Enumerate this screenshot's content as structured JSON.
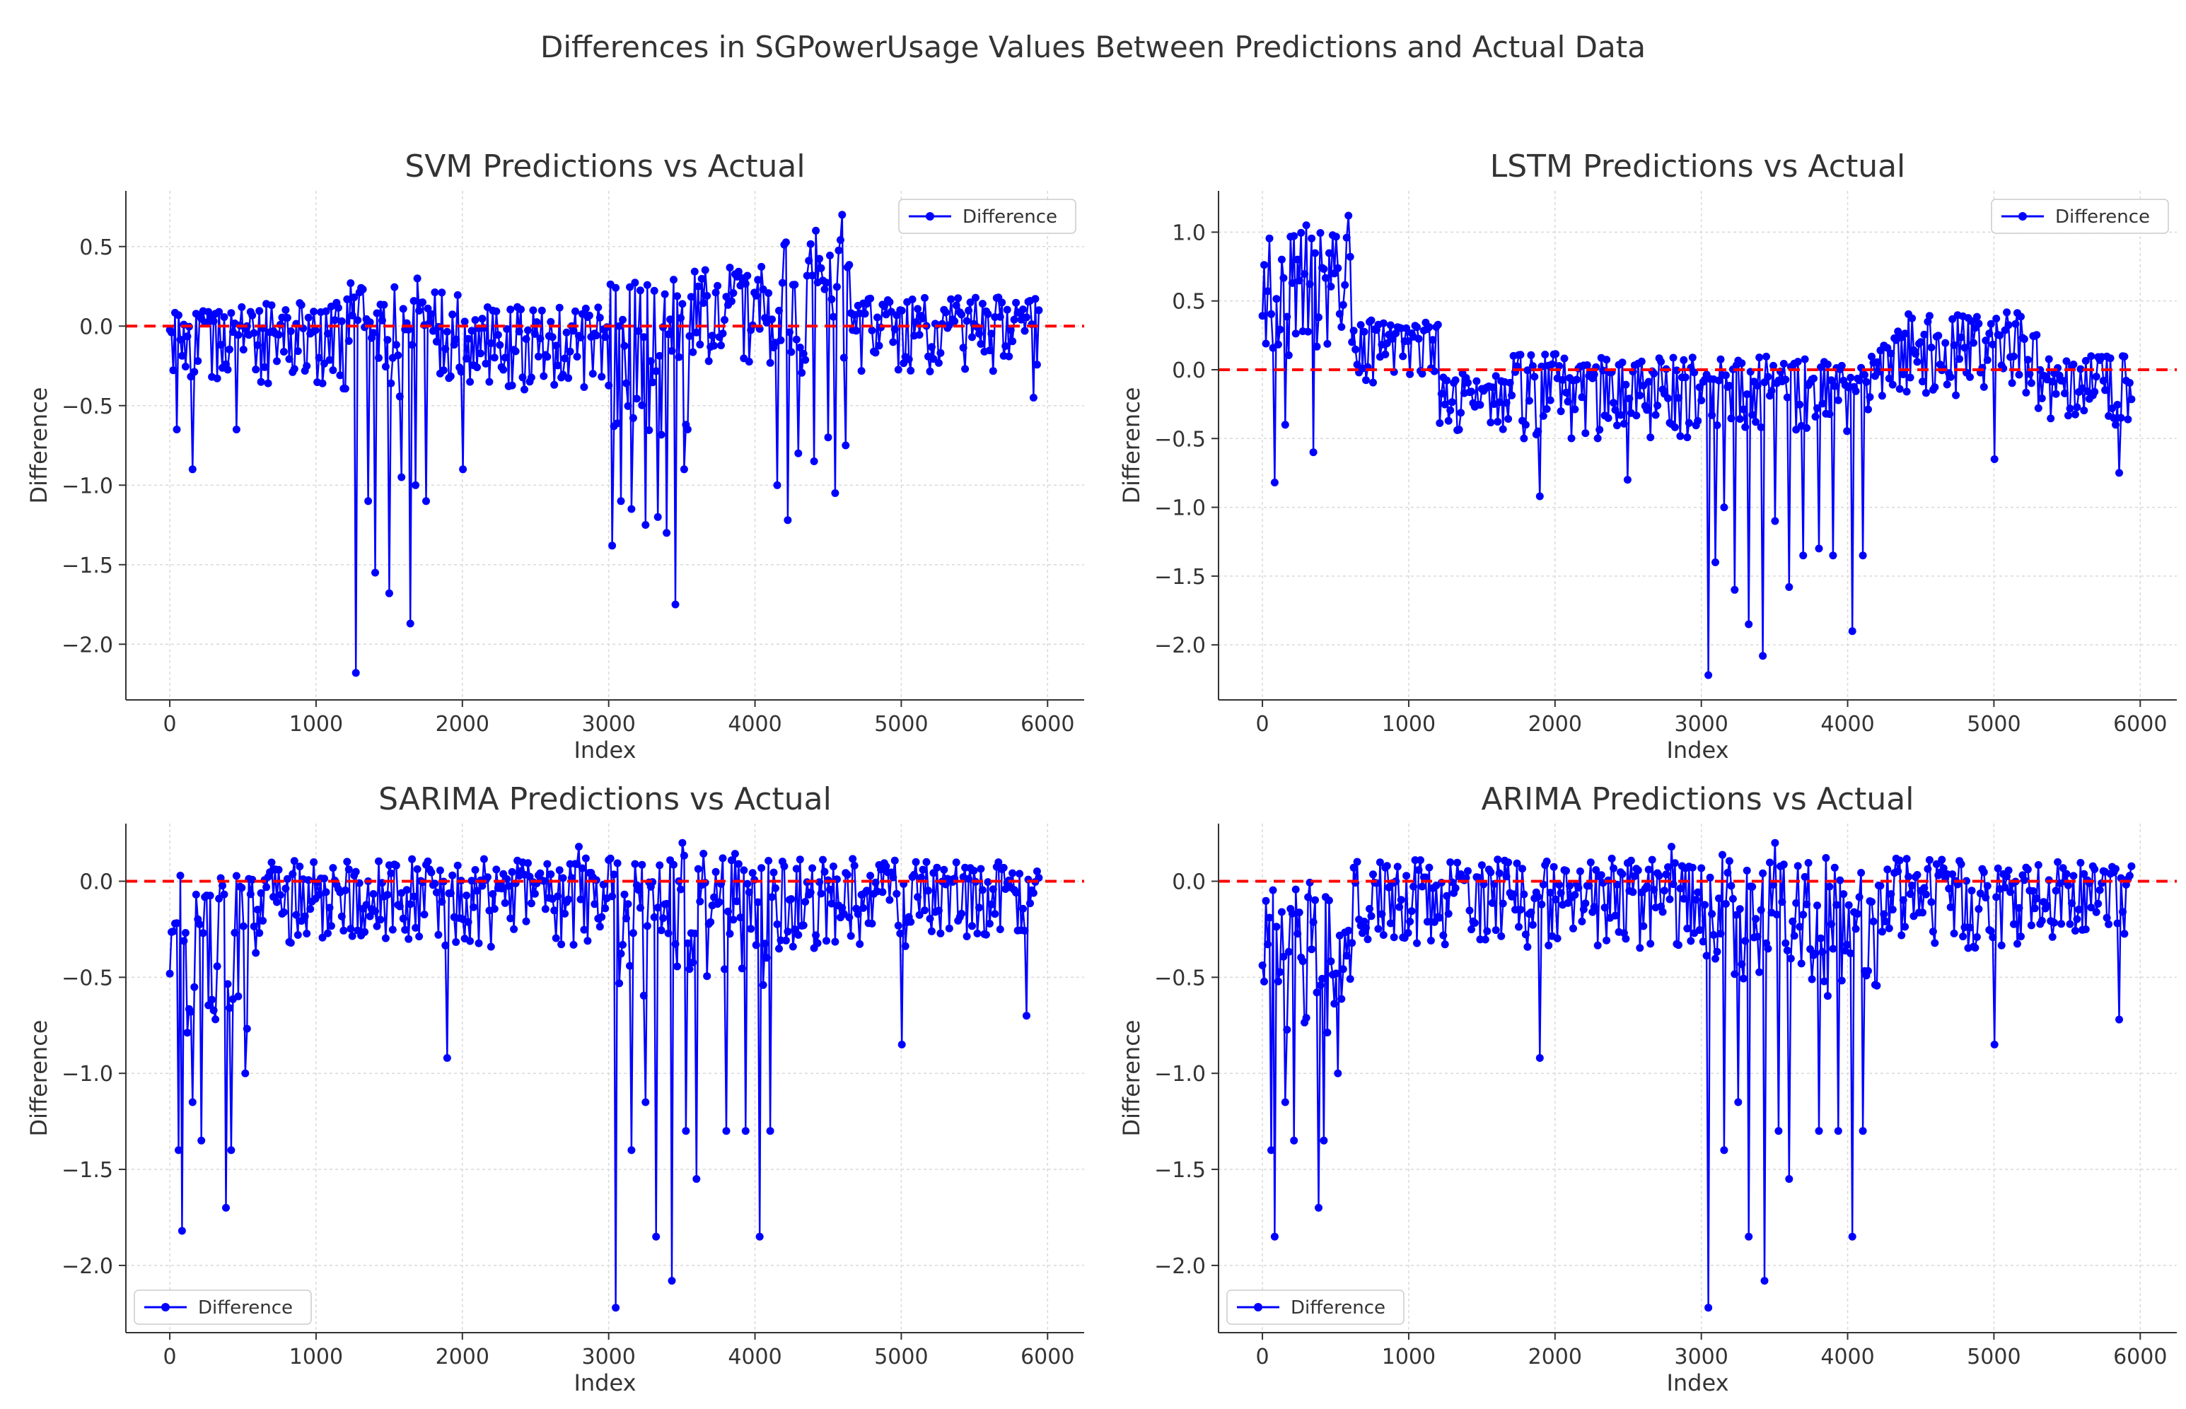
{
  "figure": {
    "title": "Differences in SGPowerUsage Values Between Predictions and Actual Data"
  },
  "colors": {
    "series": "#0000ff",
    "reference_line": "#ff0000",
    "grid": "#d9d9d9",
    "axis": "#333333",
    "text": "#333333"
  },
  "chart_data": [
    {
      "type": "line",
      "title": "SVM Predictions vs Actual",
      "xlabel": "Index",
      "ylabel": "Difference",
      "xlim": [
        -300,
        6250
      ],
      "ylim": [
        -2.35,
        0.85
      ],
      "xticks": [
        0,
        1000,
        2000,
        3000,
        4000,
        5000,
        6000
      ],
      "xtick_labels": [
        "0",
        "1000",
        "2000",
        "3000",
        "4000",
        "5000",
        "6000"
      ],
      "yticks": [
        0.5,
        0.0,
        -0.5,
        -1.0,
        -1.5,
        -2.0
      ],
      "ytick_labels": [
        "0.5",
        "0.0",
        "−0.5",
        "−1.0",
        "−1.5",
        "−2.0"
      ],
      "reference_line": {
        "y": 0.0,
        "style": "dashed"
      },
      "legend": {
        "label": "Difference",
        "position": "upper right"
      },
      "n_points": 5950,
      "series": [
        {
          "name": "Difference",
          "segments": [
            {
              "x": [
                0,
                600
              ],
              "low": -0.35,
              "high": 0.12
            },
            {
              "x": [
                600,
                1200
              ],
              "low": -0.4,
              "high": 0.15
            },
            {
              "x": [
                1200,
                2000
              ],
              "low": -0.45,
              "high": 0.25
            },
            {
              "x": [
                2000,
                3000
              ],
              "low": -0.4,
              "high": 0.12
            },
            {
              "x": [
                3000,
                3550
              ],
              "low": -0.7,
              "high": 0.3
            },
            {
              "x": [
                3550,
                4150
              ],
              "low": -0.25,
              "high": 0.4
            },
            {
              "x": [
                4150,
                4650
              ],
              "low": -0.3,
              "high": 0.55
            },
            {
              "x": [
                4650,
                5950
              ],
              "low": -0.3,
              "high": 0.18
            }
          ],
          "spikes": [
            {
              "x": 50,
              "y": -0.65
            },
            {
              "x": 150,
              "y": -0.9
            },
            {
              "x": 450,
              "y": -0.65
            },
            {
              "x": 1240,
              "y": -1.0
            },
            {
              "x": 1270,
              "y": -2.18
            },
            {
              "x": 1350,
              "y": -1.1
            },
            {
              "x": 1400,
              "y": -1.55
            },
            {
              "x": 1500,
              "y": -1.68
            },
            {
              "x": 1580,
              "y": -0.95
            },
            {
              "x": 1640,
              "y": -1.87
            },
            {
              "x": 1680,
              "y": -1.0
            },
            {
              "x": 1750,
              "y": -1.1
            },
            {
              "x": 2000,
              "y": -0.9
            },
            {
              "x": 3020,
              "y": -1.38
            },
            {
              "x": 3080,
              "y": -1.1
            },
            {
              "x": 3150,
              "y": -1.15
            },
            {
              "x": 3250,
              "y": -1.25
            },
            {
              "x": 3330,
              "y": -1.2
            },
            {
              "x": 3400,
              "y": -1.3
            },
            {
              "x": 3450,
              "y": -1.75
            },
            {
              "x": 3520,
              "y": -0.9
            },
            {
              "x": 4150,
              "y": -1.0
            },
            {
              "x": 4220,
              "y": -1.22
            },
            {
              "x": 4300,
              "y": -0.8
            },
            {
              "x": 4400,
              "y": -0.85
            },
            {
              "x": 4500,
              "y": -0.7
            },
            {
              "x": 4550,
              "y": -1.05
            },
            {
              "x": 4620,
              "y": -0.75
            },
            {
              "x": 5900,
              "y": -0.45
            }
          ],
          "peaks": [
            {
              "x": 4420,
              "y": 0.6
            },
            {
              "x": 4600,
              "y": 0.7
            },
            {
              "x": 1690,
              "y": 0.3
            },
            {
              "x": 1230,
              "y": 0.27
            }
          ]
        }
      ]
    },
    {
      "type": "line",
      "title": "LSTM Predictions vs Actual",
      "xlabel": "Index",
      "ylabel": "Difference",
      "xlim": [
        -300,
        6250
      ],
      "ylim": [
        -2.4,
        1.3
      ],
      "xticks": [
        0,
        1000,
        2000,
        3000,
        4000,
        5000,
        6000
      ],
      "xtick_labels": [
        "0",
        "1000",
        "2000",
        "3000",
        "4000",
        "5000",
        "6000"
      ],
      "yticks": [
        1.0,
        0.5,
        0.0,
        -0.5,
        -1.0,
        -1.5,
        -2.0
      ],
      "ytick_labels": [
        "1.0",
        "0.5",
        "0.0",
        "−0.5",
        "−1.0",
        "−1.5",
        "−2.0"
      ],
      "reference_line": {
        "y": 0.0,
        "style": "dashed"
      },
      "legend": {
        "label": "Difference",
        "position": "upper right"
      },
      "n_points": 5950,
      "series": [
        {
          "name": "Difference",
          "segments": [
            {
              "x": [
                0,
                600
              ],
              "low": 0.1,
              "high": 1.0
            },
            {
              "x": [
                600,
                1200
              ],
              "low": -0.1,
              "high": 0.38
            },
            {
              "x": [
                1200,
                1700
              ],
              "low": -0.45,
              "high": 0.0
            },
            {
              "x": [
                1700,
                2950
              ],
              "low": -0.5,
              "high": 0.12
            },
            {
              "x": [
                2950,
                4150
              ],
              "low": -0.45,
              "high": 0.1
            },
            {
              "x": [
                4150,
                4300
              ],
              "low": -0.2,
              "high": 0.2
            },
            {
              "x": [
                4300,
                5300
              ],
              "low": -0.2,
              "high": 0.42
            },
            {
              "x": [
                5300,
                5950
              ],
              "low": -0.4,
              "high": 0.1
            }
          ],
          "spikes": [
            {
              "x": 80,
              "y": -0.82
            },
            {
              "x": 150,
              "y": -0.4
            },
            {
              "x": 350,
              "y": -0.6
            },
            {
              "x": 1900,
              "y": -0.92
            },
            {
              "x": 2500,
              "y": -0.8
            },
            {
              "x": 3050,
              "y": -2.22
            },
            {
              "x": 3100,
              "y": -1.4
            },
            {
              "x": 3150,
              "y": -1.0
            },
            {
              "x": 3230,
              "y": -1.6
            },
            {
              "x": 3320,
              "y": -1.85
            },
            {
              "x": 3420,
              "y": -2.08
            },
            {
              "x": 3500,
              "y": -1.1
            },
            {
              "x": 3600,
              "y": -1.58
            },
            {
              "x": 3700,
              "y": -1.35
            },
            {
              "x": 3800,
              "y": -1.3
            },
            {
              "x": 3900,
              "y": -1.35
            },
            {
              "x": 4030,
              "y": -1.9
            },
            {
              "x": 4100,
              "y": -1.35
            },
            {
              "x": 5000,
              "y": -0.65
            },
            {
              "x": 5850,
              "y": -0.75
            }
          ],
          "peaks": [
            {
              "x": 590,
              "y": 1.12
            },
            {
              "x": 300,
              "y": 1.05
            }
          ]
        }
      ]
    },
    {
      "type": "line",
      "title": "SARIMA Predictions vs Actual",
      "xlabel": "Index",
      "ylabel": "Difference",
      "xlim": [
        -300,
        6250
      ],
      "ylim": [
        -2.35,
        0.3
      ],
      "xticks": [
        0,
        1000,
        2000,
        3000,
        4000,
        5000,
        6000
      ],
      "xtick_labels": [
        "0",
        "1000",
        "2000",
        "3000",
        "4000",
        "5000",
        "6000"
      ],
      "yticks": [
        0.0,
        -0.5,
        -1.0,
        -1.5,
        -2.0
      ],
      "ytick_labels": [
        "0.0",
        "−0.5",
        "−1.0",
        "−1.5",
        "−2.0"
      ],
      "reference_line": {
        "y": 0.0,
        "style": "dashed"
      },
      "legend": {
        "label": "Difference",
        "position": "lower left"
      },
      "n_points": 5950,
      "series": [
        {
          "name": "Difference",
          "segments": [
            {
              "x": [
                0,
                600
              ],
              "low": -0.8,
              "high": 0.05
            },
            {
              "x": [
                600,
                3000
              ],
              "low": -0.35,
              "high": 0.12
            },
            {
              "x": [
                3000,
                4200
              ],
              "low": -0.6,
              "high": 0.15
            },
            {
              "x": [
                4200,
                5200
              ],
              "low": -0.35,
              "high": 0.12
            },
            {
              "x": [
                5200,
                5950
              ],
              "low": -0.3,
              "high": 0.1
            }
          ],
          "spikes": [
            {
              "x": 60,
              "y": -1.4
            },
            {
              "x": 80,
              "y": -1.82
            },
            {
              "x": 150,
              "y": -1.15
            },
            {
              "x": 220,
              "y": -1.35
            },
            {
              "x": 380,
              "y": -1.7
            },
            {
              "x": 420,
              "y": -1.4
            },
            {
              "x": 520,
              "y": -1.0
            },
            {
              "x": 1900,
              "y": -0.92
            },
            {
              "x": 3050,
              "y": -2.22
            },
            {
              "x": 3150,
              "y": -1.4
            },
            {
              "x": 3250,
              "y": -1.15
            },
            {
              "x": 3320,
              "y": -1.85
            },
            {
              "x": 3430,
              "y": -2.08
            },
            {
              "x": 3530,
              "y": -1.3
            },
            {
              "x": 3600,
              "y": -1.55
            },
            {
              "x": 3800,
              "y": -1.3
            },
            {
              "x": 3930,
              "y": -1.3
            },
            {
              "x": 4030,
              "y": -1.85
            },
            {
              "x": 4100,
              "y": -1.3
            },
            {
              "x": 5000,
              "y": -0.85
            },
            {
              "x": 5850,
              "y": -0.7
            }
          ],
          "peaks": [
            {
              "x": 3500,
              "y": 0.2
            },
            {
              "x": 2800,
              "y": 0.18
            }
          ]
        }
      ]
    },
    {
      "type": "line",
      "title": "ARIMA Predictions vs Actual",
      "xlabel": "Index",
      "ylabel": "Difference",
      "xlim": [
        -300,
        6250
      ],
      "ylim": [
        -2.35,
        0.3
      ],
      "xticks": [
        0,
        1000,
        2000,
        3000,
        4000,
        5000,
        6000
      ],
      "xtick_labels": [
        "0",
        "1000",
        "2000",
        "3000",
        "4000",
        "5000",
        "6000"
      ],
      "yticks": [
        0.0,
        -0.5,
        -1.0,
        -1.5,
        -2.0
      ],
      "ytick_labels": [
        "0.0",
        "−0.5",
        "−1.0",
        "−1.5",
        "−2.0"
      ],
      "reference_line": {
        "y": 0.0,
        "style": "dashed"
      },
      "legend": {
        "label": "Difference",
        "position": "lower left"
      },
      "n_points": 5950,
      "series": [
        {
          "name": "Difference",
          "segments": [
            {
              "x": [
                0,
                600
              ],
              "low": -0.8,
              "high": 0.05
            },
            {
              "x": [
                600,
                3000
              ],
              "low": -0.35,
              "high": 0.12
            },
            {
              "x": [
                3000,
                4200
              ],
              "low": -0.6,
              "high": 0.15
            },
            {
              "x": [
                4200,
                5200
              ],
              "low": -0.35,
              "high": 0.12
            },
            {
              "x": [
                5200,
                5950
              ],
              "low": -0.3,
              "high": 0.1
            }
          ],
          "spikes": [
            {
              "x": 60,
              "y": -1.4
            },
            {
              "x": 80,
              "y": -1.85
            },
            {
              "x": 150,
              "y": -1.15
            },
            {
              "x": 220,
              "y": -1.35
            },
            {
              "x": 380,
              "y": -1.7
            },
            {
              "x": 420,
              "y": -1.35
            },
            {
              "x": 520,
              "y": -1.0
            },
            {
              "x": 1900,
              "y": -0.92
            },
            {
              "x": 3050,
              "y": -2.22
            },
            {
              "x": 3150,
              "y": -1.4
            },
            {
              "x": 3250,
              "y": -1.15
            },
            {
              "x": 3320,
              "y": -1.85
            },
            {
              "x": 3430,
              "y": -2.08
            },
            {
              "x": 3530,
              "y": -1.3
            },
            {
              "x": 3600,
              "y": -1.55
            },
            {
              "x": 3800,
              "y": -1.3
            },
            {
              "x": 3930,
              "y": -1.3
            },
            {
              "x": 4030,
              "y": -1.85
            },
            {
              "x": 4100,
              "y": -1.3
            },
            {
              "x": 5000,
              "y": -0.85
            },
            {
              "x": 5850,
              "y": -0.72
            }
          ],
          "peaks": [
            {
              "x": 3500,
              "y": 0.2
            },
            {
              "x": 2800,
              "y": 0.18
            }
          ]
        }
      ]
    }
  ]
}
